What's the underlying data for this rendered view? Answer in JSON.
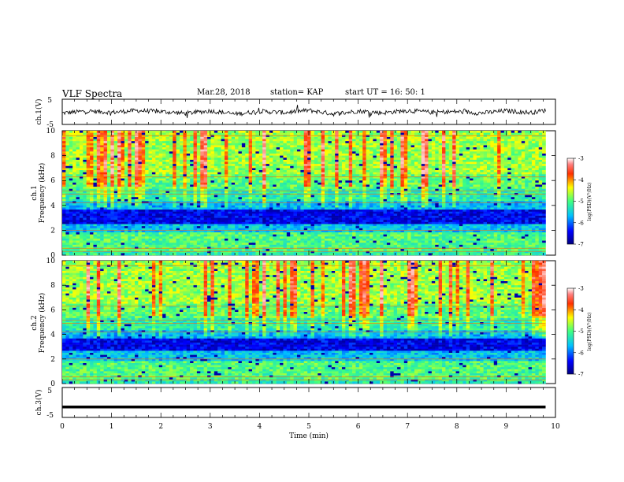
{
  "header": {
    "title": "VLF Spectra",
    "date": "Mar.28, 2018",
    "station": "station= KAP",
    "start": "start  UT =   16: 50: 1"
  },
  "colors": {
    "trace": "#000000",
    "colormap": [
      "#00007f",
      "#0000ff",
      "#0080ff",
      "#00ffff",
      "#80ff80",
      "#ffff00",
      "#ff8000",
      "#ff0000",
      "#ffffff"
    ]
  },
  "chart_data": [
    {
      "type": "line",
      "panel": "ch1-waveform",
      "ylabel": "ch.1(V)",
      "ylim": [
        -5,
        5
      ],
      "yticks": [
        "5",
        "-5"
      ],
      "x_range_min": [
        0,
        9.8
      ],
      "note_values": "noisy trace centred near 0 V, roughly -1.5 to 2 V amplitude",
      "x": [
        0,
        0.5,
        1,
        1.5,
        2,
        2.5,
        3,
        3.5,
        4,
        4.5,
        5,
        5.5,
        6,
        6.5,
        7,
        7.5,
        8,
        8.5,
        9,
        9.5,
        9.8
      ],
      "values": [
        -0.5,
        0.3,
        -0.2,
        0.5,
        0.1,
        -0.6,
        0.4,
        -0.9,
        0.2,
        -0.3,
        0.6,
        -0.8,
        0.3,
        -0.4,
        0.5,
        -0.2,
        0.1,
        -0.5,
        0.4,
        -0.3,
        0.6
      ]
    },
    {
      "type": "heatmap",
      "panel": "ch1-spectrogram",
      "ylabel": "ch.1 Frequency (kHz)",
      "ylim": [
        0,
        10
      ],
      "yticks": [
        "0",
        "2",
        "4",
        "6",
        "8",
        "10"
      ],
      "xlim": [
        0,
        10
      ],
      "colorbar_label": "log(PSD)(V²/Hz)",
      "colorbar_range": [
        -7,
        -3
      ],
      "colorbar_ticks": [
        "-3",
        "-4",
        "-5",
        "-6",
        "-7"
      ]
    },
    {
      "type": "heatmap",
      "panel": "ch2-spectrogram",
      "ylabel": "ch.2 Frequency (kHz)",
      "ylim": [
        0,
        10
      ],
      "yticks": [
        "0",
        "2",
        "4",
        "6",
        "8",
        "10"
      ],
      "xlim": [
        0,
        10
      ],
      "colorbar_label": "log(PSD)(V²/Hz)",
      "colorbar_range": [
        -7,
        -3
      ],
      "colorbar_ticks": [
        "-3",
        "-4",
        "-5",
        "-6",
        "-7"
      ]
    },
    {
      "type": "line",
      "panel": "ch3-waveform",
      "ylabel": "ch.3(V)",
      "ylim": [
        -5,
        5
      ],
      "yticks": [
        "5",
        "-5"
      ],
      "x": [
        0,
        9.8
      ],
      "values": [
        -1.5,
        -1.5
      ]
    }
  ],
  "xaxis": {
    "label": "Time  (min)",
    "ticks": [
      "0",
      "1",
      "2",
      "3",
      "4",
      "5",
      "6",
      "7",
      "8",
      "9",
      "10"
    ],
    "xlim": [
      0,
      10
    ]
  }
}
